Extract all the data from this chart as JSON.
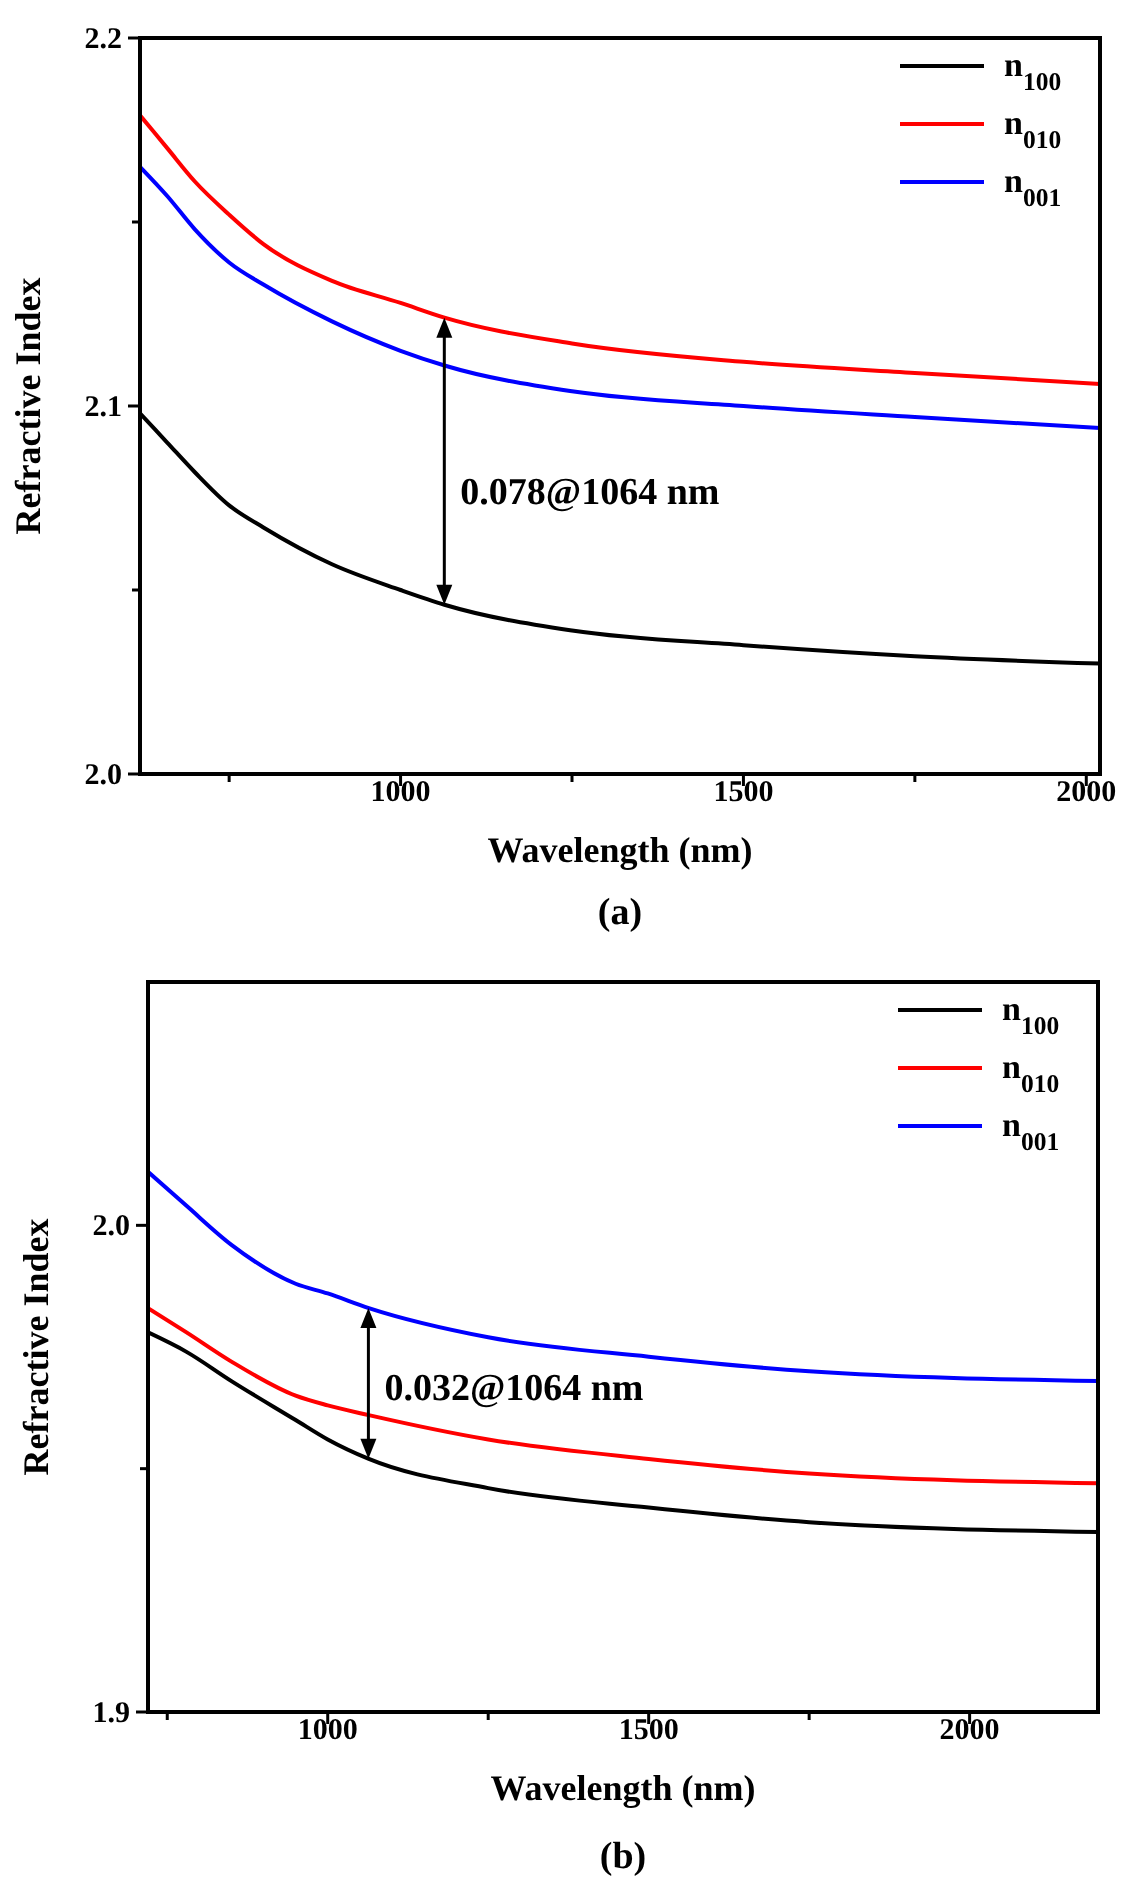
{
  "chart_data": [
    {
      "type": "line",
      "xlabel": "Wavelength (nm)",
      "ylabel": "Refractive Index",
      "xlim": [
        620,
        2020
      ],
      "xticks": [
        {
          "value": 750,
          "label": null
        },
        1000,
        {
          "value": 1250,
          "label": null
        },
        1500,
        {
          "value": 1750,
          "label": null
        },
        2000
      ],
      "ylim": [
        2.0,
        2.2
      ],
      "yticks": [
        "2.0",
        {
          "value": 2.05,
          "label": null
        },
        {
          "value": 2.1,
          "label": "2.1"
        },
        {
          "value": 2.15,
          "label": null
        },
        {
          "value": 2.2,
          "label": "2.2"
        }
      ],
      "legend": "top right",
      "grid": false,
      "x": [
        620,
        660,
        700,
        750,
        800,
        900,
        1000,
        1064,
        1250,
        1500,
        1750,
        2020
      ],
      "series": [
        {
          "name": "n$_{100}$",
          "color": "#000000",
          "values": [
            2.098,
            2.09,
            2.082,
            2.073,
            2.067,
            2.057,
            2.05,
            2.046,
            2.039,
            2.035,
            2.032,
            2.03
          ]
        },
        {
          "name": "n$_{010}$",
          "color": "#ff0000",
          "values": [
            2.179,
            2.17,
            2.161,
            2.152,
            2.144,
            2.134,
            2.128,
            2.124,
            2.117,
            2.112,
            2.109,
            2.106
          ]
        },
        {
          "name": "n$_{001}$",
          "color": "#0000ff",
          "values": [
            2.165,
            2.157,
            2.148,
            2.139,
            2.133,
            2.123,
            2.115,
            2.111,
            2.104,
            2.1,
            2.097,
            2.094
          ]
        }
      ],
      "annotations": [
        "0.078@1064 nm",
        "(a)"
      ]
    },
    {
      "type": "line",
      "xlabel": "Wavelength (nm)",
      "ylabel": "Refractive Index",
      "xlim": [
        720,
        2200
      ],
      "xticks": [
        {
          "value": 750,
          "label": null
        },
        1000,
        {
          "value": 1250,
          "label": null
        },
        1500,
        {
          "value": 1750,
          "label": null
        },
        2000
      ],
      "ylim": [
        1.9,
        2.05
      ],
      "yticks": [
        {
          "value": 1.9,
          "label": "1.9"
        },
        {
          "value": 1.95,
          "label": null
        },
        {
          "value": 2.0,
          "label": "2.0"
        }
      ],
      "legend": "top right",
      "grid": false,
      "x": [
        720,
        780,
        850,
        950,
        1000,
        1064,
        1250,
        1500,
        1750,
        2200
      ],
      "series": [
        {
          "name": "n$_{100}$",
          "color": "#000000",
          "values": [
            1.978,
            1.974,
            1.968,
            1.96,
            1.956,
            1.952,
            1.946,
            1.942,
            1.939,
            1.937
          ]
        },
        {
          "name": "n$_{010}$",
          "color": "#ff0000",
          "values": [
            1.983,
            1.978,
            1.972,
            1.965,
            1.963,
            1.961,
            1.956,
            1.952,
            1.949,
            1.947
          ]
        },
        {
          "name": "n$_{001}$",
          "color": "#0000ff",
          "values": [
            2.011,
            2.004,
            1.996,
            1.988,
            1.986,
            1.983,
            1.977,
            1.973,
            1.97,
            1.968
          ]
        }
      ],
      "annotations": [
        "0.032@1064 nm",
        "(b)"
      ]
    }
  ]
}
